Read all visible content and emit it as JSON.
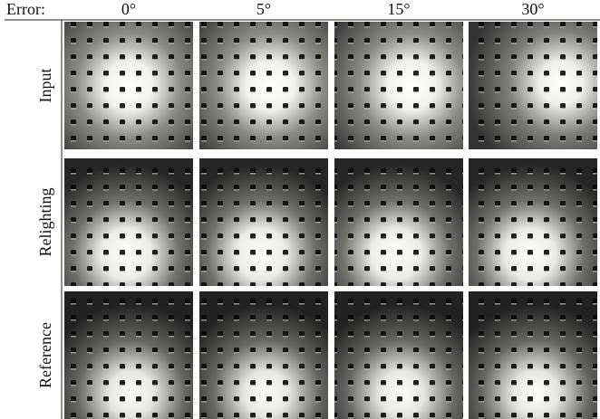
{
  "header": {
    "label": "Error:",
    "columns": [
      "0°",
      "5°",
      "15°",
      "30°"
    ]
  },
  "rows": [
    "Input",
    "Relighting",
    "Reference"
  ]
}
